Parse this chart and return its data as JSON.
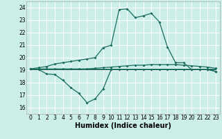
{
  "title": "",
  "xlabel": "Humidex (Indice chaleur)",
  "bg_color": "#cceee8",
  "grid_color": "#ffffff",
  "line_color": "#1a6b5e",
  "xlim": [
    -0.5,
    23.5
  ],
  "ylim": [
    15.5,
    24.5
  ],
  "xticks": [
    0,
    1,
    2,
    3,
    4,
    5,
    6,
    7,
    8,
    9,
    10,
    11,
    12,
    13,
    14,
    15,
    16,
    17,
    18,
    19,
    20,
    21,
    22,
    23
  ],
  "yticks": [
    16,
    17,
    18,
    19,
    20,
    21,
    22,
    23,
    24
  ],
  "line1_x": [
    0,
    1,
    2,
    3,
    4,
    5,
    6,
    7,
    8,
    9,
    10,
    11,
    12,
    13,
    14,
    15,
    16,
    17,
    18,
    19,
    20,
    21,
    22,
    23
  ],
  "line1_y": [
    19.1,
    19.2,
    19.3,
    19.5,
    19.6,
    19.7,
    19.8,
    19.9,
    20.0,
    20.8,
    21.0,
    23.85,
    23.9,
    23.2,
    23.35,
    23.55,
    22.85,
    20.85,
    19.6,
    19.6,
    19.05,
    19.05,
    19.05,
    18.9
  ],
  "line2_x": [
    0,
    1,
    2,
    3,
    4,
    5,
    6,
    7,
    8,
    9,
    10,
    11,
    12,
    13,
    14,
    15,
    16,
    17,
    18,
    19,
    20,
    21,
    22,
    23
  ],
  "line2_y": [
    19.1,
    19.1,
    19.1,
    19.1,
    19.1,
    19.1,
    19.1,
    19.1,
    19.15,
    19.2,
    19.25,
    19.3,
    19.35,
    19.4,
    19.4,
    19.45,
    19.45,
    19.45,
    19.45,
    19.4,
    19.35,
    19.3,
    19.25,
    19.15
  ],
  "line3_x": [
    0,
    1,
    2,
    3,
    4,
    5,
    6,
    7,
    8,
    9,
    10,
    11,
    12,
    13,
    14,
    15,
    16,
    17,
    18,
    19,
    20,
    21,
    22,
    23
  ],
  "line3_y": [
    19.1,
    19.05,
    18.7,
    18.65,
    18.2,
    17.6,
    17.15,
    16.4,
    16.7,
    17.5,
    19.05,
    19.05,
    19.05,
    19.05,
    19.05,
    19.05,
    19.05,
    19.05,
    19.05,
    19.05,
    19.05,
    19.05,
    19.05,
    18.9
  ],
  "line4_x": [
    0,
    1,
    2,
    3,
    4,
    5,
    6,
    7,
    8,
    9,
    10,
    11,
    12,
    13,
    14,
    15,
    16,
    17,
    18,
    19,
    20,
    21,
    22,
    23
  ],
  "line4_y": [
    19.05,
    19.05,
    19.05,
    19.05,
    19.05,
    19.05,
    19.05,
    19.05,
    19.05,
    19.05,
    19.05,
    19.05,
    19.05,
    19.05,
    19.05,
    19.05,
    19.05,
    19.05,
    19.05,
    19.05,
    19.05,
    19.05,
    19.05,
    19.05
  ],
  "marker": "D",
  "marker_size": 2.0,
  "line_width": 0.9,
  "font_size": 5.5
}
